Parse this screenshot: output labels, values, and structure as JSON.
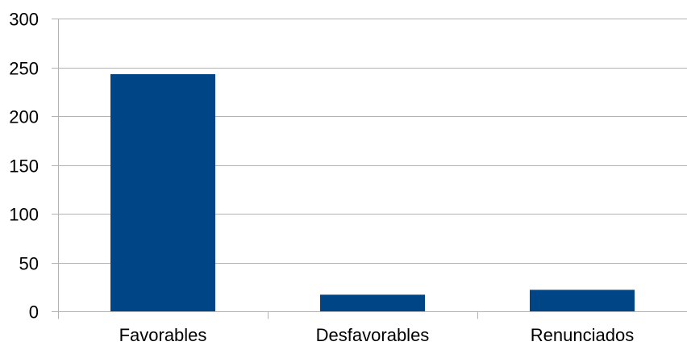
{
  "chart_data": {
    "type": "bar",
    "title": "",
    "xlabel": "",
    "ylabel": "",
    "categories": [
      "Favorables",
      "Desfavorables",
      "Renunciados"
    ],
    "values": [
      243,
      17,
      22
    ],
    "ylim": [
      0,
      300
    ],
    "yticks": [
      0,
      50,
      100,
      150,
      200,
      250,
      300
    ],
    "grid": true,
    "legend": "none",
    "colors": {
      "bar": "#004586",
      "grid": "#b3b3b3",
      "axis": "#b3b3b3",
      "text": "#000000"
    }
  }
}
